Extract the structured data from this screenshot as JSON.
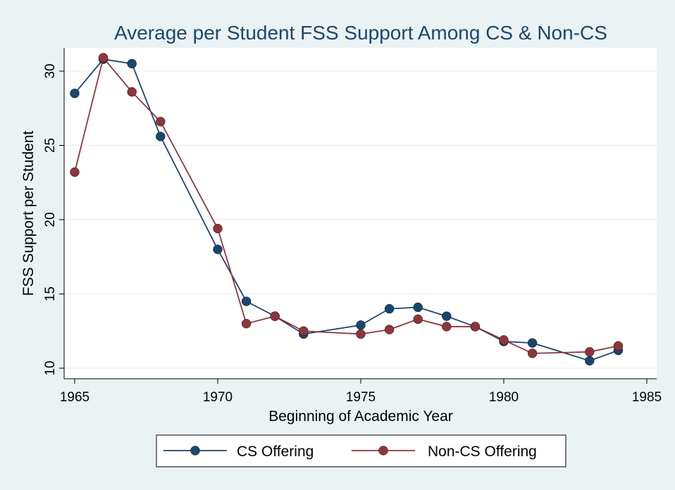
{
  "chart_data": {
    "type": "line",
    "title": "Average per Student FSS Support Among CS & Non-CS",
    "xlabel": "Beginning of Academic Year",
    "ylabel": "FSS Support per Student",
    "xlim": [
      1965,
      1985
    ],
    "ylim": [
      9.5,
      31.5
    ],
    "x_ticks": [
      1965,
      1970,
      1975,
      1980,
      1985
    ],
    "y_ticks": [
      10,
      15,
      20,
      25,
      30
    ],
    "grid": true,
    "legend_position": "bottom",
    "series": [
      {
        "name": "CS Offering",
        "color": "#1a476f",
        "x": [
          1965,
          1966,
          1967,
          1968,
          1970,
          1971,
          1972,
          1973,
          1975,
          1976,
          1977,
          1978,
          1979,
          1980,
          1981,
          1983,
          1984
        ],
        "y": [
          28.5,
          30.8,
          30.5,
          25.6,
          18.0,
          14.5,
          13.5,
          12.3,
          12.9,
          14.0,
          14.1,
          13.5,
          12.8,
          11.8,
          11.7,
          10.5,
          11.2
        ]
      },
      {
        "name": "Non-CS Offering",
        "color": "#90353b",
        "x": [
          1965,
          1966,
          1967,
          1968,
          1970,
          1971,
          1972,
          1973,
          1975,
          1976,
          1977,
          1978,
          1979,
          1980,
          1981,
          1983,
          1984
        ],
        "y": [
          23.2,
          30.9,
          28.6,
          26.6,
          19.4,
          13.0,
          13.5,
          12.5,
          12.3,
          12.6,
          13.3,
          12.8,
          12.8,
          11.9,
          11.0,
          11.1,
          11.5
        ]
      }
    ]
  },
  "colors": {
    "background": "#eaf2f3",
    "plot_area": "#ffffff",
    "title": "#1a476f",
    "grid": "#eaf2f3"
  }
}
